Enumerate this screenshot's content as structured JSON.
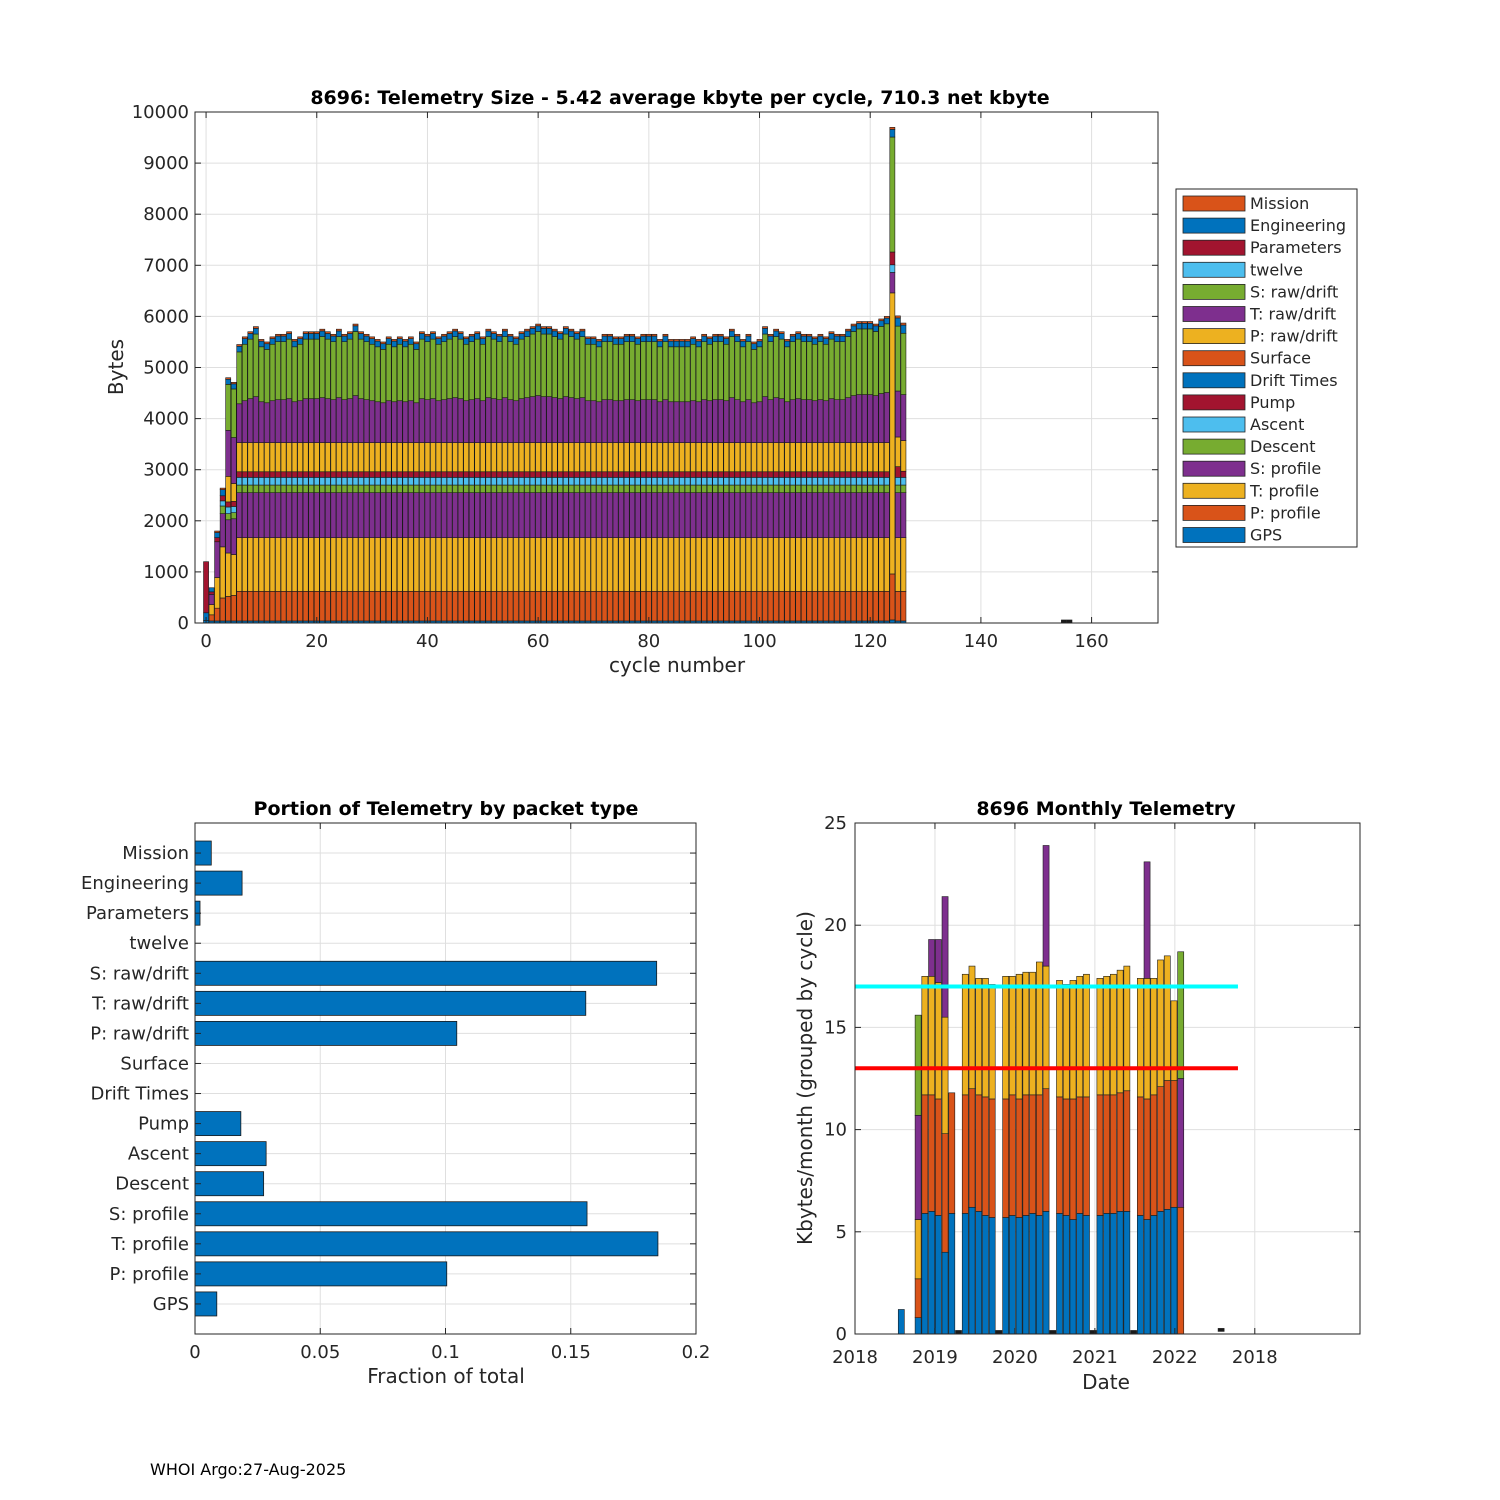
{
  "footer": "WHOI Argo:27-Aug-2025",
  "colors": {
    "Mission": "#D95319",
    "Engineering": "#0072BD",
    "Parameters": "#A2142F",
    "twelve": "#4DBEEE",
    "S: raw/drift": "#77AC30",
    "T: raw/drift": "#7E2F8E",
    "P: raw/drift": "#EDB120",
    "Surface": "#D95319",
    "Drift Times": "#0072BD",
    "Pump": "#A2142F",
    "Ascent": "#4DBEEE",
    "Descent": "#77AC30",
    "S: profile": "#7E2F8E",
    "T: profile": "#EDB120",
    "P: profile": "#D95319",
    "GPS": "#0072BD",
    "cyan_line": "#00FFFF",
    "red_line": "#FF0000"
  },
  "chart_data": [
    {
      "id": "telemetry-size",
      "type": "bar",
      "stacked": true,
      "title": "8696: Telemetry Size - 5.42 average kbyte per cycle,  710.3 net kbyte",
      "xlabel": "cycle number",
      "ylabel": "Bytes",
      "xlim": [
        -2,
        172
      ],
      "ylim": [
        0,
        10000
      ],
      "xticks": [
        0,
        20,
        40,
        60,
        80,
        100,
        120,
        140,
        160
      ],
      "yticks": [
        0,
        1000,
        2000,
        3000,
        4000,
        5000,
        6000,
        7000,
        8000,
        9000,
        10000
      ],
      "legend_position": "outside-right",
      "legend": [
        "Mission",
        "Engineering",
        "Parameters",
        "twelve",
        "S: raw/drift",
        "T: raw/drift",
        "P: raw/drift",
        "Surface",
        "Drift Times",
        "Pump",
        "Ascent",
        "Descent",
        "S: profile",
        "T: profile",
        "P: profile",
        "GPS"
      ],
      "stack_order": [
        "GPS",
        "P: profile",
        "T: profile",
        "S: profile",
        "Descent",
        "Ascent",
        "Pump",
        "P: raw/drift",
        "T: raw/drift",
        "S: raw/drift",
        "Engineering",
        "Mission",
        "Parameters"
      ],
      "typical_cycle": {
        "GPS": 40,
        "P: profile": 580,
        "T: profile": 1050,
        "S: profile": 880,
        "Descent": 150,
        "Ascent": 150,
        "Pump": 110,
        "P: raw/drift": 570,
        "T: raw/drift": 870,
        "S: raw/drift": 1180,
        "Engineering": 110,
        "Mission": 35
      },
      "cycles": [
        {
          "cycle": 0,
          "segments": {
            "Parameters": 1000,
            "Engineering": 150,
            "GPS": 50
          }
        },
        {
          "cycle": 1,
          "segments": {
            "GPS": 40,
            "P: profile": 120,
            "T: profile": 200,
            "S: profile": 200,
            "Pump": 50,
            "Engineering": 80
          }
        },
        {
          "cycle": 2,
          "segments": {
            "GPS": 40,
            "P: profile": 250,
            "T: profile": 600,
            "S: profile": 700,
            "Pump": 80,
            "Engineering": 100,
            "Mission": 30
          }
        },
        {
          "cycle": 3,
          "segments": {
            "GPS": 40,
            "P: profile": 450,
            "T: profile": 1000,
            "S: profile": 650,
            "Descent": 150,
            "Ascent": 100,
            "Pump": 100,
            "Engineering": 120,
            "Mission": 30
          }
        },
        {
          "cycle": 4,
          "segments": {
            "GPS": 40,
            "P: profile": 480,
            "T: profile": 850,
            "S: profile": 650,
            "Descent": 120,
            "Ascent": 130,
            "Pump": 100,
            "P: raw/drift": 500,
            "T: raw/drift": 900,
            "S: raw/drift": 900,
            "Engineering": 100,
            "Mission": 30
          }
        },
        {
          "cycle": 5,
          "segments": {
            "GPS": 40,
            "P: profile": 500,
            "T: profile": 800,
            "S: profile": 700,
            "Descent": 120,
            "Ascent": 120,
            "Pump": 100,
            "P: raw/drift": 350,
            "T: raw/drift": 900,
            "S: raw/drift": 950,
            "Engineering": 100,
            "Mission": 30
          }
        },
        {
          "cycle": 124,
          "segments": {
            "GPS": 60,
            "P: profile": 900,
            "T: profile": 5500,
            "S: profile": 400,
            "Pump": 250,
            "Ascent": 150,
            "S: raw/drift": 2250,
            "Engineering": 150,
            "Mission": 40
          }
        },
        {
          "cycle": 125,
          "segments": {
            "GPS": 40,
            "P: profile": 580,
            "T: profile": 1050,
            "S: profile": 880,
            "Descent": 150,
            "Ascent": 150,
            "Pump": 210,
            "P: raw/drift": 580,
            "T: raw/drift": 900,
            "S: raw/drift": 1270,
            "Engineering": 160,
            "Mission": 40
          }
        },
        {
          "cycle": 126,
          "segments": {
            "GPS": 40,
            "P: profile": 580,
            "T: profile": 1050,
            "S: profile": 880,
            "Descent": 150,
            "Ascent": 150,
            "Pump": 120,
            "P: raw/drift": 600,
            "T: raw/drift": 900,
            "S: raw/drift": 1200,
            "Engineering": 160,
            "Mission": 40
          }
        },
        {
          "cycle": 155,
          "segments": {
            "Mission": 30
          }
        },
        {
          "cycle": 156,
          "segments": {
            "Mission": 30
          }
        }
      ],
      "cycle_totals": [
        1200,
        700,
        1850,
        2750,
        4850,
        4750,
        5450,
        5600,
        5700,
        5800,
        5550,
        5500,
        5600,
        5650,
        5650,
        5700,
        5550,
        5600,
        5700,
        5700,
        5700,
        5750,
        5700,
        5650,
        5750,
        5650,
        5700,
        5850,
        5700,
        5650,
        5600,
        5550,
        5500,
        5600,
        5550,
        5600,
        5550,
        5600,
        5500,
        5700,
        5650,
        5700,
        5600,
        5650,
        5700,
        5750,
        5700,
        5600,
        5650,
        5700,
        5600,
        5750,
        5700,
        5650,
        5750,
        5650,
        5600,
        5700,
        5750,
        5800,
        5850,
        5800,
        5800,
        5750,
        5700,
        5800,
        5750,
        5700,
        5750,
        5600,
        5600,
        5550,
        5650,
        5650,
        5600,
        5600,
        5650,
        5650,
        5600,
        5650,
        5650,
        5650,
        5550,
        5650,
        5550,
        5550,
        5550,
        5550,
        5600,
        5550,
        5650,
        5600,
        5650,
        5650,
        5600,
        5750,
        5650,
        5550,
        5650,
        5500,
        5550,
        5800,
        5650,
        5750,
        5700,
        5550,
        5650,
        5700,
        5650,
        5650,
        5600,
        5650,
        5600,
        5700,
        5650,
        5650,
        5750,
        5850,
        5900,
        5900,
        5900,
        5850,
        5950,
        6000,
        9750,
        6050,
        6000
      ]
    },
    {
      "id": "portion-by-packet",
      "type": "bar",
      "orientation": "horizontal",
      "title": "Portion of Telemetry by packet type",
      "xlabel": "Fraction of total",
      "ylabel": "",
      "xlim": [
        0,
        0.2
      ],
      "xticks": [
        0,
        0.05,
        0.1,
        0.15,
        0.2
      ],
      "xtick_labels": [
        "0",
        "0.05",
        "0.1",
        "0.15",
        "0.2"
      ],
      "categories": [
        "Mission",
        "Engineering",
        "Parameters",
        "twelve",
        "S: raw/drift",
        "T: raw/drift",
        "P: raw/drift",
        "Surface",
        "Drift Times",
        "Pump",
        "Ascent",
        "Descent",
        "S: profile",
        "T: profile",
        "P: profile",
        "GPS"
      ],
      "values": [
        0.0065,
        0.0188,
        0.002,
        0,
        0.1843,
        0.156,
        0.1045,
        0,
        0,
        0.0183,
        0.0284,
        0.0274,
        0.1565,
        0.1848,
        0.1005,
        0.0087
      ],
      "color": "#0072BD"
    },
    {
      "id": "monthly-telemetry",
      "type": "bar",
      "stacked": true,
      "title": "8696 Monthly Telemetry",
      "xlabel": "Date",
      "ylabel": "Kbytes/month (grouped by cycle)",
      "ylim": [
        0,
        25
      ],
      "yticks": [
        0,
        5,
        10,
        15,
        20,
        25
      ],
      "xtick_labels": [
        "2018",
        "2019",
        "2020",
        "2021",
        "2022",
        "2018"
      ],
      "xlim_months": [
        0,
        60
      ],
      "xtick_months": [
        0,
        9.5,
        19,
        28.5,
        38,
        47.5
      ],
      "reference_lines": [
        {
          "name": "cyan",
          "value": 17,
          "color": "#00FFFF"
        },
        {
          "name": "red",
          "value": 13,
          "color": "#FF0000"
        }
      ],
      "segment_colors": [
        "#0072BD",
        "#D95319",
        "#EDB120",
        "#7E2F8E",
        "#77AC30"
      ],
      "months": [
        {
          "m": 5.5,
          "seg": [
            1.2
          ]
        },
        {
          "m": 7.5,
          "seg": [
            0.8,
            1.9,
            2.9,
            5.1,
            4.9
          ]
        },
        {
          "m": 8.3,
          "seg": [
            5.9,
            5.8,
            5.8
          ]
        },
        {
          "m": 9.1,
          "seg": [
            6.0,
            5.7,
            5.8,
            1.8
          ]
        },
        {
          "m": 9.9,
          "seg": [
            5.8,
            5.7,
            5.7,
            2.1
          ]
        },
        {
          "m": 10.7,
          "seg": [
            4.0,
            5.8,
            5.7,
            5.9
          ]
        },
        {
          "m": 11.5,
          "seg": [
            5.9,
            5.9
          ]
        },
        {
          "m": 12.3,
          "seg": [
            0.1
          ]
        },
        {
          "m": 13.1,
          "seg": [
            5.9,
            5.8,
            5.9
          ]
        },
        {
          "m": 13.9,
          "seg": [
            6.2,
            5.8,
            6.0
          ]
        },
        {
          "m": 14.7,
          "seg": [
            6.0,
            5.7,
            5.7
          ]
        },
        {
          "m": 15.5,
          "seg": [
            5.8,
            5.8,
            5.8
          ]
        },
        {
          "m": 16.3,
          "seg": [
            5.7,
            5.8,
            5.6
          ]
        },
        {
          "m": 17.1,
          "seg": [
            0.1
          ]
        },
        {
          "m": 17.9,
          "seg": [
            5.7,
            5.8,
            6.0
          ]
        },
        {
          "m": 18.7,
          "seg": [
            5.8,
            5.9,
            5.8
          ]
        },
        {
          "m": 19.5,
          "seg": [
            5.7,
            5.8,
            6.1
          ]
        },
        {
          "m": 20.3,
          "seg": [
            5.8,
            5.9,
            6.0
          ]
        },
        {
          "m": 21.1,
          "seg": [
            5.9,
            5.8,
            6.0
          ]
        },
        {
          "m": 21.9,
          "seg": [
            5.8,
            5.9,
            6.5
          ]
        },
        {
          "m": 22.7,
          "seg": [
            6.0,
            6.0,
            6.0,
            5.9
          ]
        },
        {
          "m": 23.5,
          "seg": [
            0.1
          ]
        },
        {
          "m": 24.3,
          "seg": [
            5.9,
            5.7,
            5.7
          ]
        },
        {
          "m": 25.1,
          "seg": [
            5.8,
            5.7,
            5.6
          ]
        },
        {
          "m": 25.9,
          "seg": [
            5.6,
            5.9,
            5.8
          ]
        },
        {
          "m": 26.7,
          "seg": [
            5.9,
            5.7,
            5.9
          ]
        },
        {
          "m": 27.5,
          "seg": [
            5.8,
            5.8,
            6.0
          ]
        },
        {
          "m": 28.3,
          "seg": [
            0.1
          ]
        },
        {
          "m": 29.1,
          "seg": [
            5.8,
            5.9,
            5.7
          ]
        },
        {
          "m": 29.9,
          "seg": [
            5.9,
            5.8,
            5.8
          ]
        },
        {
          "m": 30.7,
          "seg": [
            5.9,
            5.8,
            5.9
          ]
        },
        {
          "m": 31.5,
          "seg": [
            6.0,
            5.8,
            6.0
          ]
        },
        {
          "m": 32.3,
          "seg": [
            6.0,
            5.9,
            6.1
          ]
        },
        {
          "m": 33.1,
          "seg": [
            0.1
          ]
        },
        {
          "m": 33.9,
          "seg": [
            5.8,
            5.8,
            5.8
          ]
        },
        {
          "m": 34.7,
          "seg": [
            5.6,
            5.9,
            5.9,
            5.7
          ]
        },
        {
          "m": 35.5,
          "seg": [
            5.8,
            5.9,
            5.7
          ]
        },
        {
          "m": 36.3,
          "seg": [
            6.0,
            6.1,
            6.2
          ]
        },
        {
          "m": 37.1,
          "seg": [
            6.1,
            6.3,
            6.1
          ]
        },
        {
          "m": 37.9,
          "seg": [
            6.2,
            6.2,
            3.9
          ]
        },
        {
          "m": 38.7,
          "seg": [
            0,
            6.2,
            0,
            6.3,
            6.2
          ]
        },
        {
          "m": 43.5,
          "seg": [
            0.2
          ]
        }
      ]
    }
  ]
}
